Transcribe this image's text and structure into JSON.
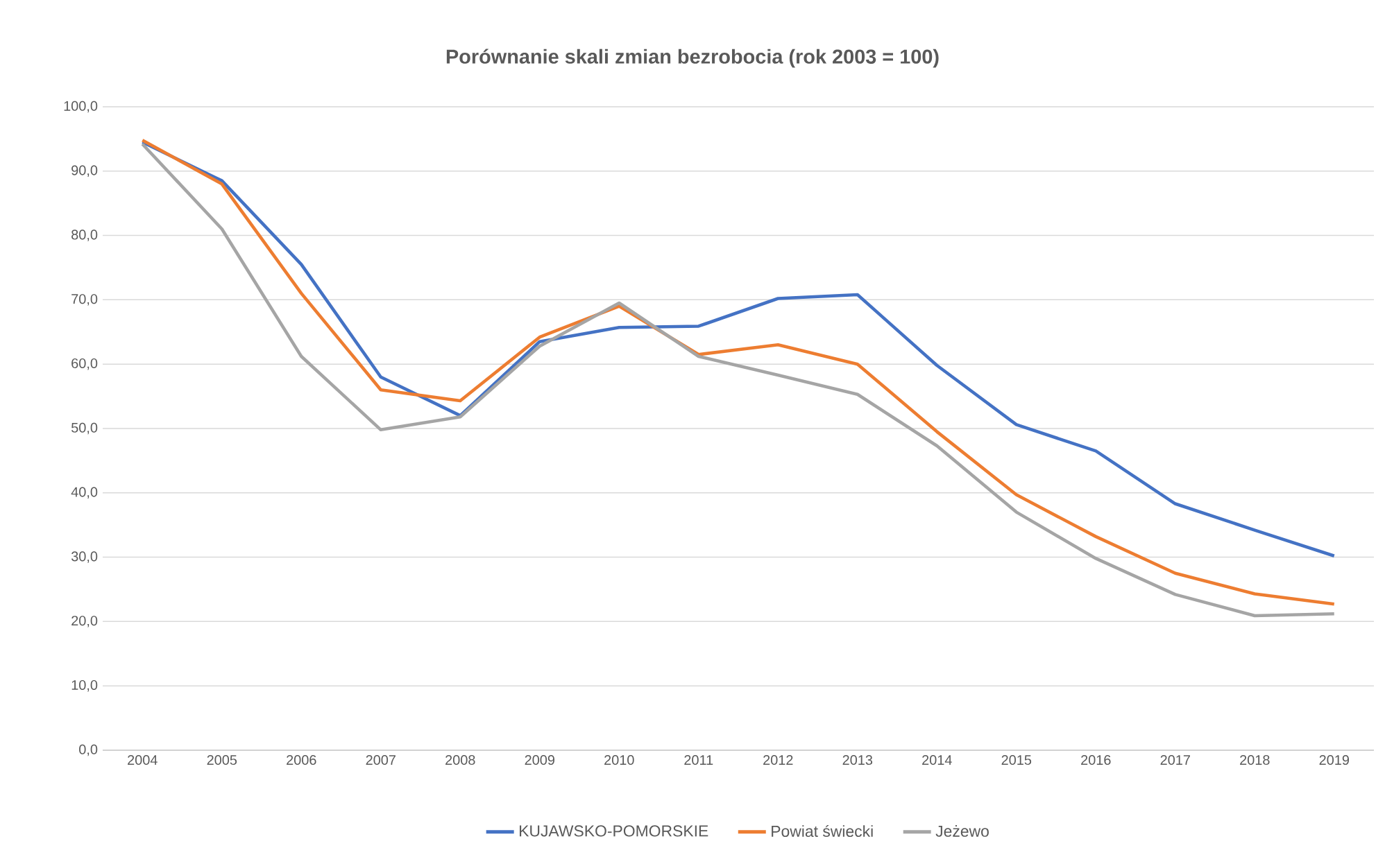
{
  "chart_data": {
    "type": "line",
    "title": "Porównanie skali zmian bezrobocia (rok 2003 = 100)",
    "categories": [
      "2004",
      "2005",
      "2006",
      "2007",
      "2008",
      "2009",
      "2010",
      "2011",
      "2012",
      "2013",
      "2014",
      "2015",
      "2016",
      "2017",
      "2018",
      "2019"
    ],
    "series": [
      {
        "name": "KUJAWSKO-POMORSKIE",
        "color": "#4472c4",
        "values": [
          94.5,
          88.5,
          75.5,
          58,
          52,
          63.5,
          65.7,
          65.9,
          70.2,
          70.8,
          59.8,
          50.6,
          46.5,
          38.3,
          34.2,
          30.2
        ]
      },
      {
        "name": "Powiat świecki",
        "color": "#ed7d31",
        "values": [
          94.8,
          88,
          71,
          56,
          54.3,
          64.2,
          69,
          61.5,
          63,
          60,
          49.5,
          39.7,
          33.2,
          27.5,
          24.3,
          22.7
        ]
      },
      {
        "name": "Jeżewo",
        "color": "#a5a5a5",
        "values": [
          94.2,
          81,
          61.2,
          49.8,
          51.8,
          62.8,
          69.5,
          61.2,
          58.3,
          55.3,
          47.3,
          37,
          29.8,
          24.2,
          20.9,
          21.2
        ]
      }
    ],
    "ylim": [
      0,
      100
    ],
    "yticks": [
      {
        "value": 0,
        "label": "0,0"
      },
      {
        "value": 10,
        "label": "10,0"
      },
      {
        "value": 20,
        "label": "20,0"
      },
      {
        "value": 30,
        "label": "30,0"
      },
      {
        "value": 40,
        "label": "40,0"
      },
      {
        "value": 50,
        "label": "50,0"
      },
      {
        "value": 60,
        "label": "60,0"
      },
      {
        "value": 70,
        "label": "70,0"
      },
      {
        "value": 80,
        "label": "80,0"
      },
      {
        "value": 90,
        "label": "90,0"
      },
      {
        "value": 100,
        "label": "100,0"
      }
    ],
    "grid": "y",
    "legend": "bottom",
    "marker": "none",
    "line_style": "solid"
  }
}
